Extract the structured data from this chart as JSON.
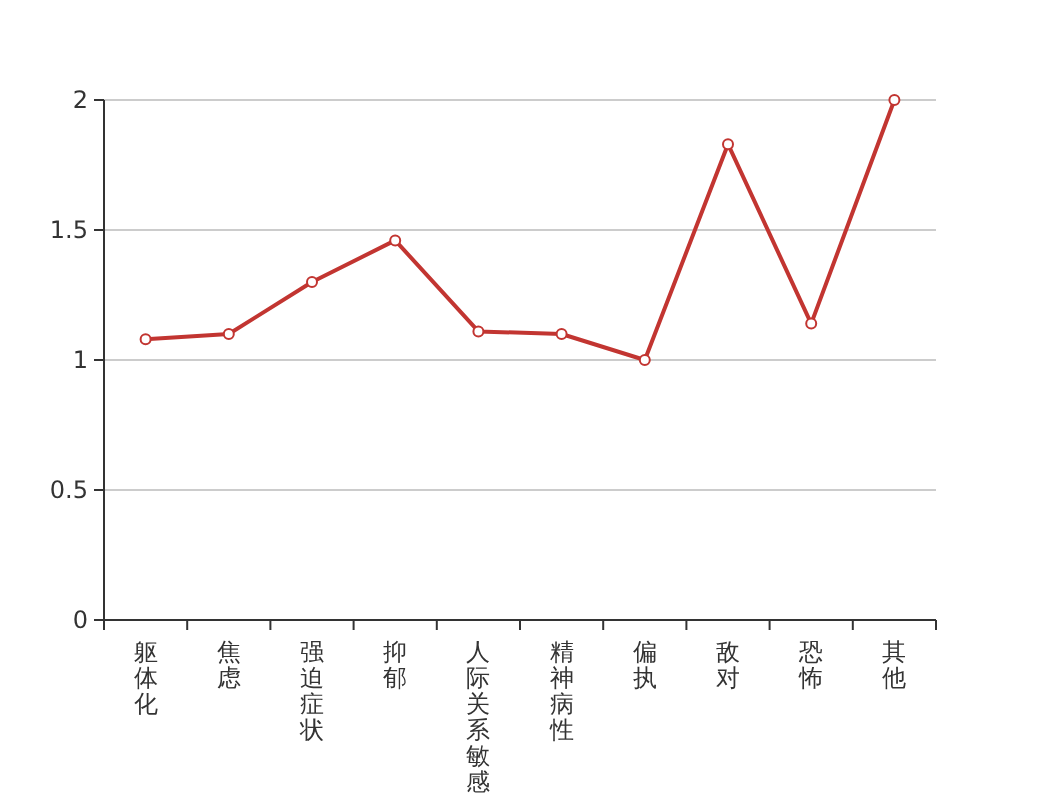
{
  "chart_data": {
    "type": "line",
    "categories": [
      "躯体化",
      "焦虑",
      "强迫症状",
      "抑郁",
      "人际关系敏感",
      "精神病性",
      "偏执",
      "敌对",
      "恐怖",
      "其他"
    ],
    "values": [
      1.08,
      1.1,
      1.3,
      1.46,
      1.11,
      1.1,
      1.0,
      1.83,
      1.14,
      2.0
    ],
    "color": "#c23531",
    "ylim": [
      0,
      2
    ],
    "yticks": [
      0,
      0.5,
      1,
      1.5,
      2
    ],
    "grid": "y",
    "marker": "circle"
  }
}
